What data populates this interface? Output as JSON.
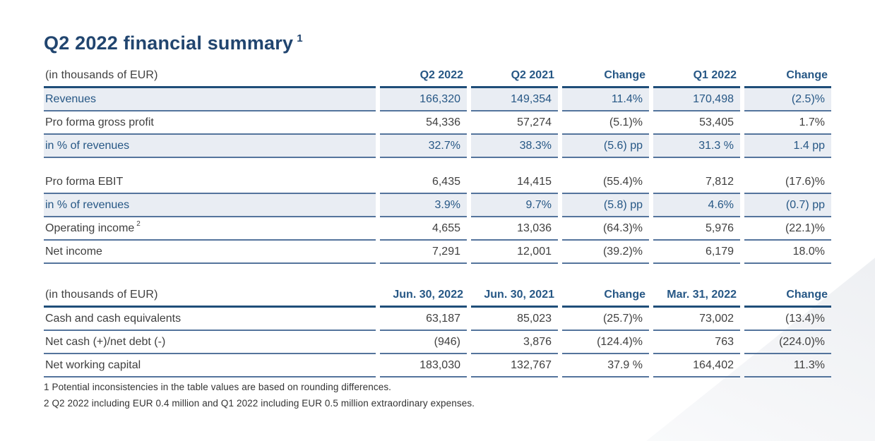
{
  "page": {
    "title": "Q2 2022 financial summary",
    "title_footnote_ref": "1"
  },
  "colors": {
    "title_text": "#21456f",
    "header_text": "#265785",
    "body_text": "#3f3f3f",
    "thick_rule": "#1f4e79",
    "thin_rule": "#54749c",
    "highlight_row_bg": "#e9edf3",
    "background": "#ffffff"
  },
  "income_table": {
    "unit_label": "(in thousands of EUR)",
    "columns": [
      "Q2 2022",
      "Q2 2021",
      "Change",
      "Q1 2022",
      "Change"
    ],
    "rows": [
      {
        "label": "Revenues",
        "values": [
          "166,320",
          "149,354",
          "11.4%",
          "170,498",
          "(2.5)%"
        ],
        "highlight": true
      },
      {
        "label": "Pro forma gross profit",
        "values": [
          "54,336",
          "57,274",
          "(5.1)%",
          "53,405",
          "1.7%"
        ],
        "highlight": false
      },
      {
        "label": "in % of revenues",
        "values": [
          "32.7%",
          "38.3%",
          "(5.6) pp",
          "31.3 %",
          "1.4 pp"
        ],
        "highlight": true
      },
      {
        "spacer": true
      },
      {
        "label": "Pro forma EBIT",
        "values": [
          "6,435",
          "14,415",
          "(55.4)%",
          "7,812",
          "(17.6)%"
        ],
        "highlight": false
      },
      {
        "label": "in % of revenues",
        "values": [
          "3.9%",
          "9.7%",
          "(5.8) pp",
          "4.6%",
          "(0.7) pp"
        ],
        "highlight": true
      },
      {
        "label": "Operating income",
        "label_sup": "2",
        "values": [
          "4,655",
          "13,036",
          "(64.3)%",
          "5,976",
          "(22.1)%"
        ],
        "highlight": false
      },
      {
        "label": "Net income",
        "values": [
          "7,291",
          "12,001",
          "(39.2)%",
          "6,179",
          "18.0%"
        ],
        "highlight": false
      }
    ]
  },
  "balance_table": {
    "unit_label": "(in thousands of EUR)",
    "columns": [
      "Jun. 30, 2022",
      "Jun. 30, 2021",
      "Change",
      "Mar. 31, 2022",
      "Change"
    ],
    "rows": [
      {
        "label": "Cash and cash equivalents",
        "values": [
          "63,187",
          "85,023",
          "(25.7)%",
          "73,002",
          "(13.4)%"
        ],
        "highlight": false
      },
      {
        "label": "Net cash (+)/net debt (-)",
        "values": [
          "(946)",
          "3,876",
          "(124.4)%",
          "763",
          "(224.0)%"
        ],
        "highlight": false
      },
      {
        "label": "Net working capital",
        "values": [
          "183,030",
          "132,767",
          "37.9 %",
          "164,402",
          "11.3%"
        ],
        "highlight": false
      }
    ]
  },
  "footnotes": [
    "1 Potential inconsistencies in the table values are based on rounding differences.",
    "2 Q2 2022 including EUR 0.4 million and Q1 2022 including EUR 0.5 million extraordinary expenses."
  ]
}
